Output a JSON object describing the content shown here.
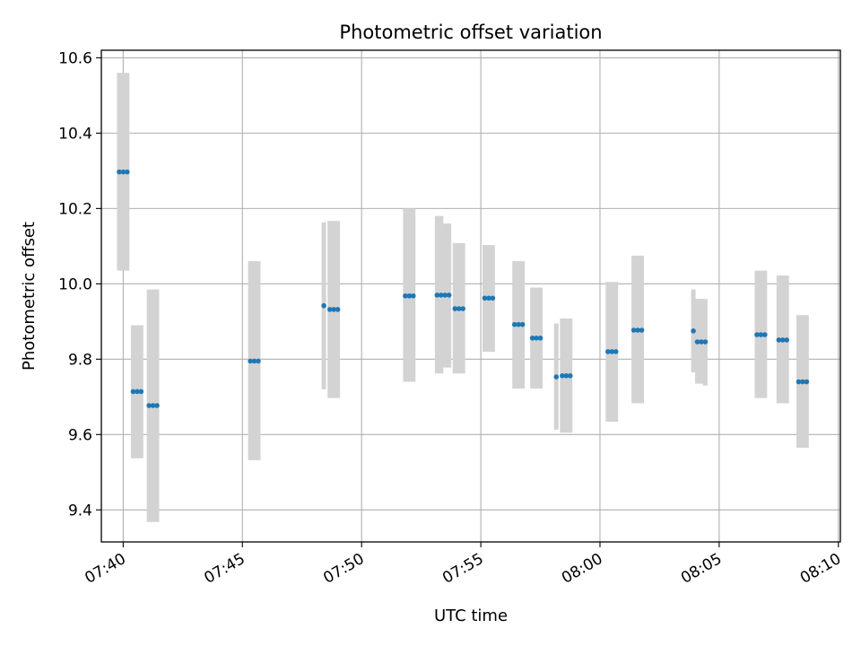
{
  "chart_data": {
    "type": "scatter",
    "title": "Photometric offset variation",
    "xlabel": "UTC time",
    "ylabel": "Photometric offset",
    "x_tick_labels": [
      "07:40",
      "07:45",
      "07:50",
      "07:55",
      "08:00",
      "08:05",
      "08:10"
    ],
    "x_tick_times": [
      "07:40",
      "07:45",
      "07:50",
      "07:55",
      "08:00",
      "08:05",
      "08:10"
    ],
    "y_tick_labels": [
      "9.4",
      "9.6",
      "9.8",
      "10.0",
      "10.2",
      "10.4",
      "10.6"
    ],
    "y_ticks": [
      9.4,
      9.6,
      9.8,
      10.0,
      10.2,
      10.4,
      10.6
    ],
    "xlim": [
      "07:39:05",
      "08:10:05"
    ],
    "ylim": [
      9.315,
      10.62
    ],
    "grid": true,
    "marker_color": "#1f77b4",
    "errorbar_color": "#d3d3d3",
    "groups": [
      {
        "times": [
          "07:39:50",
          "07:40:00",
          "07:40:10"
        ],
        "y": 10.297,
        "err_low": 10.035,
        "err_high": 10.56
      },
      {
        "times": [
          "07:40:25",
          "07:40:35",
          "07:40:45"
        ],
        "y": 9.714,
        "err_low": 9.537,
        "err_high": 9.89
      },
      {
        "times": [
          "07:41:05",
          "07:41:15",
          "07:41:25"
        ],
        "y": 9.677,
        "err_low": 9.368,
        "err_high": 9.985
      },
      {
        "times": [
          "07:45:20",
          "07:45:30",
          "07:45:40"
        ],
        "y": 9.795,
        "err_low": 9.532,
        "err_high": 10.06
      },
      {
        "times": [
          "07:48:25"
        ],
        "y": 9.942,
        "err_low": 9.72,
        "err_high": 10.163
      },
      {
        "times": [
          "07:48:40",
          "07:48:50",
          "07:49:00"
        ],
        "y": 9.932,
        "err_low": 9.697,
        "err_high": 10.167
      },
      {
        "times": [
          "07:51:50",
          "07:52:00",
          "07:52:10"
        ],
        "y": 9.968,
        "err_low": 9.74,
        "err_high": 10.2
      },
      {
        "times": [
          "07:53:10",
          "07:53:20"
        ],
        "y": 9.97,
        "err_low": 9.762,
        "err_high": 10.18
      },
      {
        "times": [
          "07:53:30",
          "07:53:40"
        ],
        "y": 9.97,
        "err_low": 9.778,
        "err_high": 10.16
      },
      {
        "times": [
          "07:53:55",
          "07:54:05",
          "07:54:15"
        ],
        "y": 9.934,
        "err_low": 9.762,
        "err_high": 10.108
      },
      {
        "times": [
          "07:55:10",
          "07:55:20",
          "07:55:30"
        ],
        "y": 9.962,
        "err_low": 9.82,
        "err_high": 10.103
      },
      {
        "times": [
          "07:56:25",
          "07:56:35",
          "07:56:45"
        ],
        "y": 9.892,
        "err_low": 9.722,
        "err_high": 10.06
      },
      {
        "times": [
          "07:57:10",
          "07:57:20",
          "07:57:30"
        ],
        "y": 9.856,
        "err_low": 9.722,
        "err_high": 9.99
      },
      {
        "times": [
          "07:58:10"
        ],
        "y": 9.753,
        "err_low": 9.613,
        "err_high": 9.895
      },
      {
        "times": [
          "07:58:25",
          "07:58:35",
          "07:58:45"
        ],
        "y": 9.756,
        "err_low": 9.605,
        "err_high": 9.908
      },
      {
        "times": [
          "08:00:20",
          "08:00:30",
          "08:00:40"
        ],
        "y": 9.82,
        "err_low": 9.634,
        "err_high": 10.005
      },
      {
        "times": [
          "08:01:25",
          "08:01:35",
          "08:01:45"
        ],
        "y": 9.877,
        "err_low": 9.683,
        "err_high": 10.075
      },
      {
        "times": [
          "08:03:55"
        ],
        "y": 9.875,
        "err_low": 9.765,
        "err_high": 9.985
      },
      {
        "times": [
          "08:04:05",
          "08:04:15"
        ],
        "y": 9.846,
        "err_low": 9.735,
        "err_high": 9.96
      },
      {
        "times": [
          "08:04:25"
        ],
        "y": 9.846,
        "err_low": 9.73,
        "err_high": 9.96
      },
      {
        "times": [
          "08:06:35",
          "08:06:45",
          "08:06:55"
        ],
        "y": 9.865,
        "err_low": 9.697,
        "err_high": 10.035
      },
      {
        "times": [
          "08:07:30",
          "08:07:40",
          "08:07:50"
        ],
        "y": 9.851,
        "err_low": 9.683,
        "err_high": 10.022
      },
      {
        "times": [
          "08:08:20",
          "08:08:30",
          "08:08:40"
        ],
        "y": 9.74,
        "err_low": 9.565,
        "err_high": 9.917
      }
    ]
  }
}
